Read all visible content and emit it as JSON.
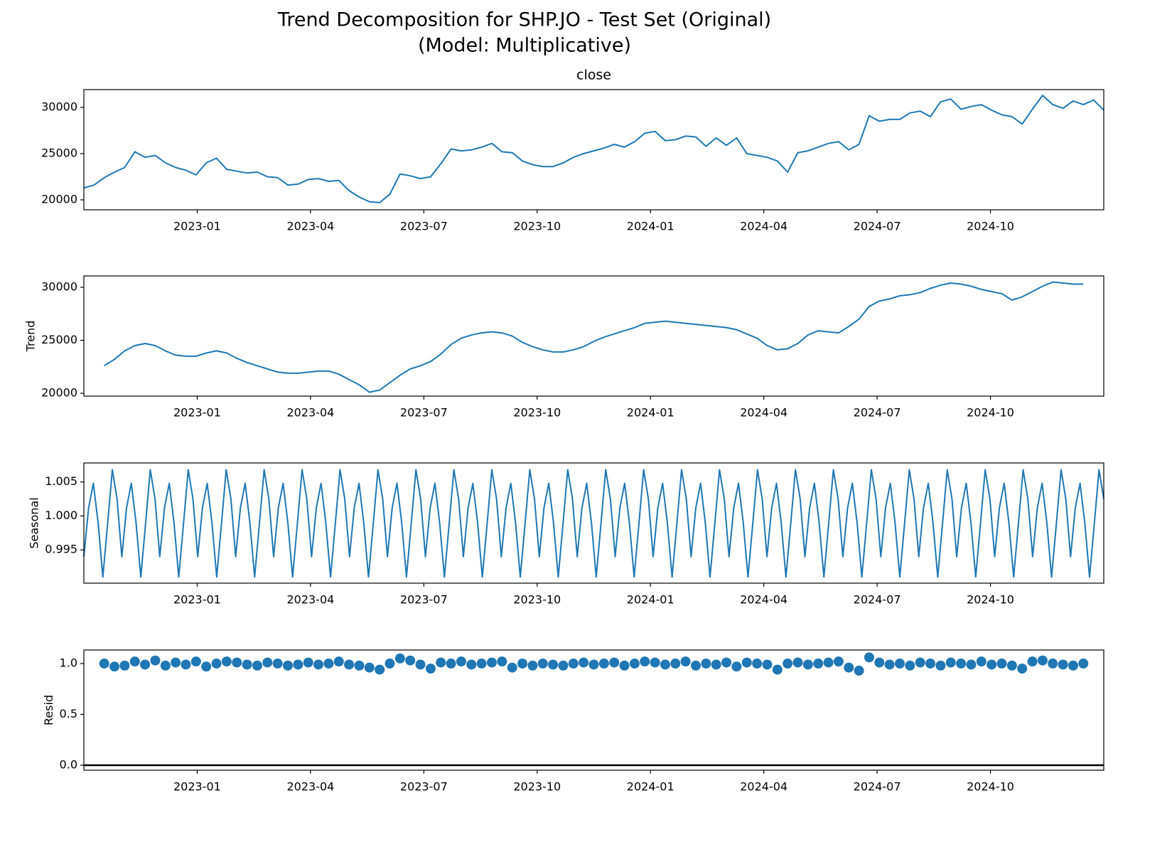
{
  "title": [
    "Trend Decomposition for SHP.JO - Test Set (Original)",
    "(Model: Multiplicative)"
  ],
  "chart_data": [
    {
      "type": "line",
      "title": "close",
      "color": "#1f77b4",
      "xlim": [
        "2022-10",
        "2025-01"
      ],
      "xticks": [
        "2023-01",
        "2023-04",
        "2023-07",
        "2023-10",
        "2024-01",
        "2024-04",
        "2024-07",
        "2024-10"
      ],
      "ylim": [
        18923,
        31923
      ],
      "yticks": [
        20000,
        25000,
        30000
      ],
      "values": [
        21300,
        21600,
        22400,
        23000,
        23500,
        25200,
        24600,
        24800,
        24000,
        23500,
        23200,
        22700,
        24000,
        24500,
        23300,
        23100,
        22900,
        23000,
        22500,
        22400,
        21600,
        21700,
        22200,
        22300,
        22000,
        22100,
        21000,
        20300,
        19800,
        19700,
        20600,
        22800,
        22600,
        22300,
        22500,
        23900,
        25500,
        25300,
        25400,
        25700,
        26100,
        25200,
        25100,
        24200,
        23800,
        23600,
        23600,
        24000,
        24600,
        25000,
        25300,
        25600,
        26000,
        25700,
        26300,
        27200,
        27400,
        26400,
        26500,
        26900,
        26800,
        25800,
        26700,
        25900,
        26700,
        25000,
        24800,
        24600,
        24200,
        23000,
        25100,
        25300,
        25700,
        26100,
        26300,
        25400,
        26000,
        29100,
        28500,
        28700,
        28700,
        29400,
        29600,
        29000,
        30600,
        30900,
        29800,
        30100,
        30300,
        29700,
        29200,
        29000,
        28200,
        29800,
        31300,
        30300,
        29900,
        30700,
        30300,
        30800,
        29700
      ]
    },
    {
      "type": "line",
      "ylabel": "Trend",
      "color": "#1f77b4",
      "xlim": [
        "2022-10",
        "2025-01"
      ],
      "xticks": [
        "2023-01",
        "2023-04",
        "2023-07",
        "2023-10",
        "2024-01",
        "2024-04",
        "2024-07",
        "2024-10"
      ],
      "ylim": [
        19732,
        31074
      ],
      "yticks": [
        20000,
        25000,
        30000
      ],
      "values": [
        null,
        null,
        22600,
        23200,
        24000,
        24500,
        24700,
        24500,
        24000,
        23600,
        23500,
        23500,
        23800,
        24000,
        23800,
        23300,
        22900,
        22600,
        22300,
        22000,
        21900,
        21900,
        22000,
        22100,
        22100,
        21800,
        21300,
        20800,
        20100,
        20300,
        21000,
        21700,
        22300,
        22600,
        23000,
        23700,
        24600,
        25200,
        25500,
        25700,
        25800,
        25700,
        25400,
        24800,
        24400,
        24100,
        23900,
        23900,
        24100,
        24400,
        24900,
        25300,
        25600,
        25900,
        26200,
        26600,
        26700,
        26800,
        26700,
        26600,
        26500,
        26400,
        26300,
        26200,
        26000,
        25600,
        25200,
        24500,
        24100,
        24200,
        24700,
        25500,
        25900,
        25800,
        25700,
        26300,
        27000,
        28200,
        28700,
        28900,
        29200,
        29300,
        29500,
        29900,
        30200,
        30400,
        30300,
        30100,
        29800,
        29600,
        29400,
        28800,
        29100,
        29600,
        30100,
        30500,
        30400,
        30300,
        30300,
        null,
        null
      ]
    },
    {
      "type": "line",
      "ylabel": "Seasonal",
      "color": "#1f77b4",
      "xlim": [
        "2022-10",
        "2025-01"
      ],
      "xticks": [
        "2023-01",
        "2023-04",
        "2023-07",
        "2023-10",
        "2024-01",
        "2024-04",
        "2024-07",
        "2024-10"
      ],
      "ylim": [
        0.9901,
        1.0078
      ],
      "yticks": [
        0.995,
        {
          "value": 1,
          "label": "1.000"
        },
        1.005
      ],
      "values": [
        0.994,
        1.0012,
        1.0048,
        0.999,
        0.991,
        0.9988,
        1.0068,
        1.0025,
        0.994,
        1.0012,
        1.0048,
        0.999,
        0.991,
        0.9988,
        1.0068,
        1.0025,
        0.994,
        1.0012,
        1.0048,
        0.999,
        0.991,
        0.9988,
        1.0068,
        1.0025,
        0.994,
        1.0012,
        1.0048,
        0.999,
        0.991,
        0.9988,
        1.0068,
        1.0025,
        0.994,
        1.0012,
        1.0048,
        0.999,
        0.991,
        0.9988,
        1.0068,
        1.0025,
        0.994,
        1.0012,
        1.0048,
        0.999,
        0.991,
        0.9988,
        1.0068,
        1.0025,
        0.994,
        1.0012,
        1.0048,
        0.999,
        0.991,
        0.9988,
        1.0068,
        1.0025,
        0.994,
        1.0012,
        1.0048,
        0.999,
        0.991,
        0.9988,
        1.0068,
        1.0025,
        0.994,
        1.0012,
        1.0048,
        0.999,
        0.991,
        0.9988,
        1.0068,
        1.0025,
        0.994,
        1.0012,
        1.0048,
        0.999,
        0.991,
        0.9988,
        1.0068,
        1.0025,
        0.994,
        1.0012,
        1.0048,
        0.999,
        0.991,
        0.9988,
        1.0068,
        1.0025,
        0.994,
        1.0012,
        1.0048,
        0.999,
        0.991,
        0.9988,
        1.0068,
        1.0025,
        0.994,
        1.0012,
        1.0048,
        0.999,
        0.991,
        0.9988,
        1.0068,
        1.0025,
        0.994,
        1.0012,
        1.0048,
        0.999,
        0.991,
        0.9988,
        1.0068,
        1.0025,
        0.994,
        1.0012,
        1.0048,
        0.999,
        0.991,
        0.9988,
        1.0068,
        1.0025,
        0.994,
        1.0012,
        1.0048,
        0.999,
        0.991,
        0.9988,
        1.0068,
        1.0025,
        0.994,
        1.0012,
        1.0048,
        0.999,
        0.991,
        0.9988,
        1.0068,
        1.0025,
        0.994,
        1.0012,
        1.0048,
        0.999,
        0.991,
        0.9988,
        1.0068,
        1.0025,
        0.994,
        1.0012,
        1.0048,
        0.999,
        0.991,
        0.9988,
        1.0068,
        1.0025,
        0.994,
        1.0012,
        1.0048,
        0.999,
        0.991,
        0.9988,
        1.0068,
        1.0025,
        0.994,
        1.0012,
        1.0048,
        0.999,
        0.991,
        0.9988,
        1.0068,
        1.0025,
        0.994,
        1.0012,
        1.0048,
        0.999,
        0.991,
        0.9988,
        1.0068,
        1.0025,
        0.994,
        1.0012,
        1.0048,
        0.999,
        0.991,
        0.9988,
        1.0068,
        1.0025,
        0.994,
        1.0012,
        1.0048,
        0.999,
        0.991,
        0.9988,
        1.0068,
        1.0025,
        0.994,
        1.0012,
        1.0048,
        0.999,
        0.991,
        0.9988,
        1.0068,
        1.0025,
        0.994,
        1.0012,
        1.0048,
        0.999,
        0.991,
        0.9988,
        1.0068,
        1.0025,
        0.994,
        1.0012,
        1.0048,
        0.999,
        0.991,
        0.9988,
        1.0068,
        1.0025
      ]
    },
    {
      "type": "scatter",
      "ylabel": "Resid",
      "color": "#1f77b4",
      "zero_line": true,
      "xlim": [
        "2022-10",
        "2025-01"
      ],
      "xticks": [
        "2023-01",
        "2023-04",
        "2023-07",
        "2023-10",
        "2024-01",
        "2024-04",
        "2024-07",
        "2024-10"
      ],
      "ylim": [
        -0.049,
        1.133
      ],
      "yticks": [
        {
          "value": 0,
          "label": "0.0"
        },
        0.5,
        {
          "value": 1,
          "label": "1.0"
        }
      ],
      "values": [
        null,
        null,
        1.0,
        0.97,
        0.98,
        1.02,
        0.99,
        1.03,
        0.98,
        1.01,
        0.99,
        1.02,
        0.97,
        1.0,
        1.02,
        1.01,
        0.99,
        0.98,
        1.01,
        1.0,
        0.98,
        0.99,
        1.01,
        0.99,
        1.0,
        1.02,
        0.99,
        0.98,
        0.96,
        0.94,
        1.0,
        1.05,
        1.03,
        0.99,
        0.95,
        1.01,
        1.0,
        1.02,
        0.99,
        1.0,
        1.01,
        1.02,
        0.96,
        1.0,
        0.98,
        1.0,
        0.99,
        0.98,
        1.0,
        1.01,
        0.99,
        1.0,
        1.01,
        0.98,
        1.0,
        1.02,
        1.01,
        0.99,
        1.0,
        1.02,
        0.98,
        1.0,
        0.99,
        1.01,
        0.97,
        1.01,
        1.0,
        0.99,
        0.94,
        1.0,
        1.01,
        0.99,
        1.0,
        1.01,
        1.02,
        0.96,
        0.93,
        1.06,
        1.01,
        0.99,
        1.0,
        0.98,
        1.01,
        1.0,
        0.98,
        1.01,
        1.0,
        0.99,
        1.02,
        0.99,
        1.0,
        0.98,
        0.95,
        1.02,
        1.03,
        1.0,
        0.99,
        0.98,
        1.0,
        null,
        null
      ]
    }
  ]
}
